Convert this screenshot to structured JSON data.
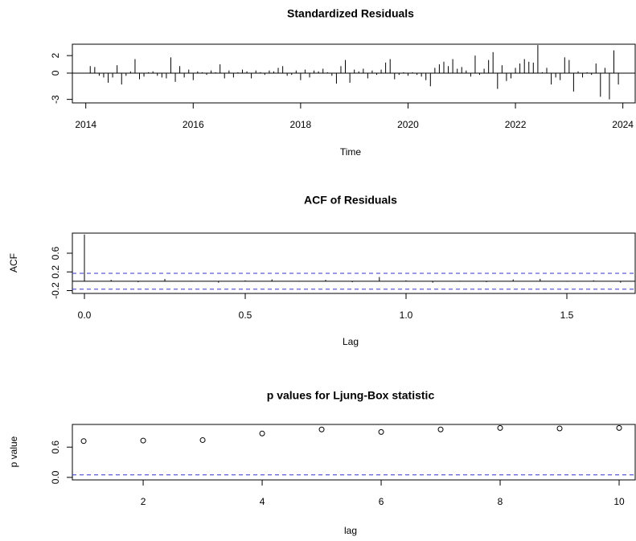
{
  "chart_data": [
    {
      "type": "stem",
      "title": "Standardized Residuals",
      "xlabel": "Time",
      "x": [
        2014.083,
        2014.167,
        2014.25,
        2014.333,
        2014.417,
        2014.5,
        2014.583,
        2014.667,
        2014.75,
        2014.833,
        2014.917,
        2015,
        2015.083,
        2015.167,
        2015.25,
        2015.333,
        2015.417,
        2015.5,
        2015.583,
        2015.667,
        2015.75,
        2015.833,
        2015.917,
        2016,
        2016.083,
        2016.167,
        2016.25,
        2016.333,
        2016.417,
        2016.5,
        2016.583,
        2016.667,
        2016.75,
        2016.833,
        2016.917,
        2017,
        2017.083,
        2017.167,
        2017.25,
        2017.333,
        2017.417,
        2017.5,
        2017.583,
        2017.667,
        2017.75,
        2017.833,
        2017.917,
        2018,
        2018.083,
        2018.167,
        2018.25,
        2018.333,
        2018.417,
        2018.5,
        2018.583,
        2018.667,
        2018.75,
        2018.833,
        2018.917,
        2019,
        2019.083,
        2019.167,
        2019.25,
        2019.333,
        2019.417,
        2019.5,
        2019.583,
        2019.667,
        2019.75,
        2019.833,
        2019.917,
        2020,
        2020.083,
        2020.167,
        2020.25,
        2020.333,
        2020.417,
        2020.5,
        2020.583,
        2020.667,
        2020.75,
        2020.833,
        2020.917,
        2021,
        2021.083,
        2021.167,
        2021.25,
        2021.333,
        2021.417,
        2021.5,
        2021.583,
        2021.667,
        2021.75,
        2021.833,
        2021.917,
        2022,
        2022.083,
        2022.167,
        2022.25,
        2022.333,
        2022.417,
        2022.5,
        2022.583,
        2022.667,
        2022.75,
        2022.833,
        2022.917,
        2023,
        2023.083,
        2023.167,
        2023.25,
        2023.333,
        2023.417,
        2023.5,
        2023.583,
        2023.667,
        2023.75,
        2023.833,
        2023.917
      ],
      "values": [
        0.8,
        0.7,
        -0.3,
        -0.5,
        -1.1,
        -0.5,
        0.9,
        -1.3,
        -0.3,
        0.2,
        1.6,
        -0.7,
        -0.4,
        0.1,
        0.2,
        -0.3,
        -0.5,
        -0.6,
        1.8,
        -1.0,
        0.8,
        -0.5,
        0.4,
        -0.8,
        0.2,
        0.1,
        -0.2,
        0.3,
        0.1,
        1.0,
        -0.6,
        0.3,
        -0.5,
        0.1,
        0.4,
        0.2,
        -0.6,
        0.3,
        0.1,
        -0.2,
        0.3,
        0.2,
        0.6,
        0.8,
        -0.3,
        -0.2,
        0.3,
        -0.8,
        0.4,
        -0.5,
        0.3,
        0.2,
        0.5,
        0.1,
        -0.3,
        -1.2,
        0.8,
        1.5,
        -1.1,
        0.4,
        0.2,
        0.5,
        -0.6,
        0.3,
        -0.2,
        0.4,
        1.2,
        1.6,
        -0.7,
        -0.2,
        0.1,
        -0.3,
        0.1,
        -0.2,
        -0.4,
        -0.8,
        -1.5,
        0.6,
        1.0,
        1.3,
        0.8,
        1.6,
        0.5,
        0.7,
        0.3,
        -0.4,
        2.0,
        -0.2,
        0.5,
        1.5,
        2.4,
        -1.8,
        0.9,
        -0.9,
        -0.6,
        0.6,
        1.1,
        1.6,
        1.3,
        1.2,
        3.2,
        0.1,
        0.6,
        -1.3,
        -0.5,
        -0.8,
        1.8,
        1.5,
        -2.1,
        0.2,
        -0.5,
        0.1,
        -0.2,
        1.1,
        -2.7,
        0.6,
        -3.0,
        2.6,
        -1.3
      ],
      "color": "#000000",
      "hline": 0,
      "xlim": [
        2013.75,
        2024.23
      ],
      "xticks": [
        2014,
        2016,
        2018,
        2020,
        2022,
        2024
      ],
      "ylim": [
        -3.4,
        3.3
      ],
      "yticks": [
        -3,
        0,
        2
      ]
    },
    {
      "type": "stem",
      "title": "ACF of Residuals",
      "xlabel": "Lag",
      "ylabel": "ACF",
      "x": [
        0,
        0.083,
        0.167,
        0.25,
        0.333,
        0.417,
        0.5,
        0.583,
        0.667,
        0.75,
        0.833,
        0.917,
        1,
        1.083,
        1.167,
        1.25,
        1.333,
        1.417,
        1.5,
        1.583,
        1.667
      ],
      "values": [
        1.0,
        0.03,
        -0.02,
        0.05,
        0.01,
        -0.03,
        0.02,
        0.04,
        -0.01,
        0.03,
        -0.02,
        0.09,
        0.02,
        -0.03,
        0.01,
        -0.02,
        0.04,
        0.05,
        -0.01,
        0.02,
        -0.03
      ],
      "color": "#000000",
      "hline": 0,
      "ci": 0.17,
      "ci_color": "#3333cc",
      "xlim": [
        -0.0375,
        1.7125
      ],
      "xticks": [
        {
          "value": 0,
          "label": "0.0"
        },
        0.5,
        {
          "value": 1,
          "label": "1.0"
        },
        1.5
      ],
      "ylim": [
        -0.26,
        1.03
      ],
      "yticks": [
        -0.2,
        0.2,
        0.6
      ]
    },
    {
      "type": "scatter",
      "title": "p values for Ljung-Box statistic",
      "xlabel": "lag",
      "ylabel": "p value",
      "x": [
        1,
        2,
        3,
        4,
        5,
        6,
        7,
        8,
        9,
        10
      ],
      "values": [
        0.72,
        0.73,
        0.74,
        0.87,
        0.95,
        0.9,
        0.95,
        0.98,
        0.97,
        0.98
      ],
      "color": "#000000",
      "threshold": 0.05,
      "threshold_color": "#3333cc",
      "xlim": [
        0.81,
        10.27
      ],
      "xticks": [
        2,
        4,
        6,
        8,
        10
      ],
      "ylim": [
        -0.05,
        1.05
      ],
      "yticks": [
        {
          "value": 0,
          "label": "0.0"
        },
        0.6
      ]
    }
  ]
}
